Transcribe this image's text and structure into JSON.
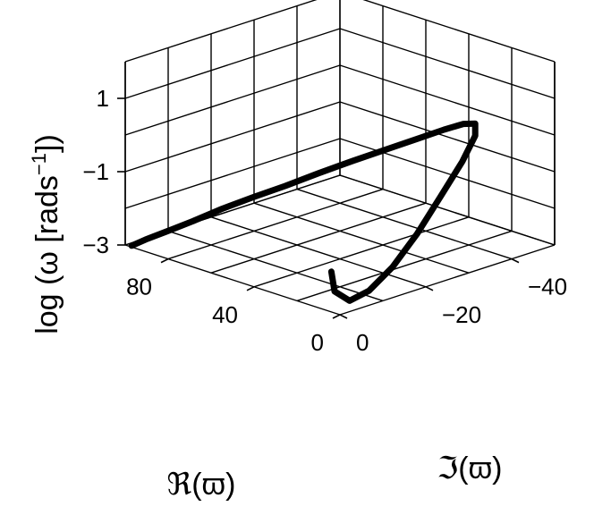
{
  "chart_data": {
    "type": "line3d",
    "view": "isometric box, z vertical",
    "z_axis": {
      "label_prefix": "log (ω [rads",
      "label_sup": "−1",
      "label_suffix": "])",
      "range": [
        -3,
        2
      ],
      "ticks": [
        {
          "value": -3,
          "label": "−3"
        },
        {
          "value": -1,
          "label": "−1"
        },
        {
          "value": 1,
          "label": "1"
        }
      ]
    },
    "x_axis": {
      "label_symbol": "ℜ",
      "label_rest": "(ϖ)",
      "range": [
        0,
        100
      ],
      "ticks": [
        {
          "value": 0,
          "label": "0"
        },
        {
          "value": 40,
          "label": "40"
        },
        {
          "value": 80,
          "label": "80"
        }
      ]
    },
    "y_axis": {
      "label_symbol": "ℑ",
      "label_rest": "(ϖ)",
      "range": [
        0,
        -50
      ],
      "ticks": [
        {
          "value": 0,
          "label": "0"
        },
        {
          "value": -20,
          "label": "−20"
        },
        {
          "value": -40,
          "label": "−40"
        }
      ]
    },
    "series": [
      {
        "color": "#000000",
        "points": [
          {
            "re": 98.0,
            "im": -0.5,
            "logw": -3.0
          },
          {
            "re": 96.5,
            "im": -3.0,
            "logw": -2.9
          },
          {
            "re": 93.5,
            "im": -6.5,
            "logw": -2.75
          },
          {
            "re": 89.5,
            "im": -10.5,
            "logw": -2.55
          },
          {
            "re": 85.0,
            "im": -15.0,
            "logw": -2.3
          },
          {
            "re": 79.5,
            "im": -19.5,
            "logw": -2.05
          },
          {
            "re": 73.5,
            "im": -24.0,
            "logw": -1.8
          },
          {
            "re": 67.0,
            "im": -28.5,
            "logw": -1.5
          },
          {
            "re": 60.0,
            "im": -33.0,
            "logw": -1.2
          },
          {
            "re": 52.5,
            "im": -37.0,
            "logw": -0.9
          },
          {
            "re": 45.0,
            "im": -40.5,
            "logw": -0.6
          },
          {
            "re": 37.5,
            "im": -43.0,
            "logw": -0.3
          },
          {
            "re": 30.5,
            "im": -44.0,
            "logw": -0.05
          },
          {
            "re": 24.0,
            "im": -43.5,
            "logw": 0.1
          },
          {
            "re": 18.0,
            "im": -40.5,
            "logw": 0.0
          },
          {
            "re": 13.0,
            "im": -35.0,
            "logw": -0.4
          },
          {
            "re": 9.0,
            "im": -28.0,
            "logw": -1.0
          },
          {
            "re": 6.0,
            "im": -21.0,
            "logw": -1.7
          },
          {
            "re": 3.5,
            "im": -14.0,
            "logw": -2.3
          },
          {
            "re": 2.5,
            "im": -8.0,
            "logw": -2.7
          },
          {
            "re": 2.5,
            "im": -3.5,
            "logw": -2.8
          },
          {
            "re": 3.5,
            "im": -0.5,
            "logw": -2.45
          },
          {
            "re": 4.0,
            "im": 0.0,
            "logw": -1.9
          }
        ]
      }
    ]
  }
}
